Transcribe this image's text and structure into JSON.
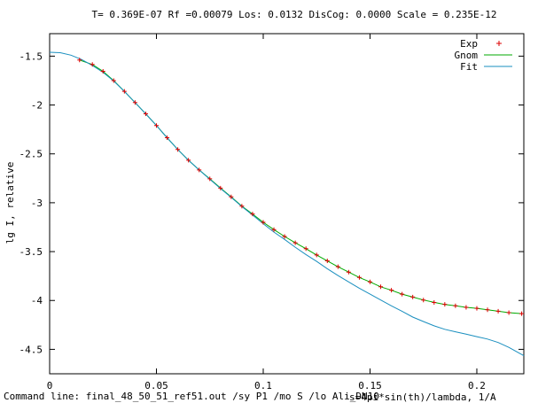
{
  "window": {
    "command_line_label": "Command line:",
    "command_line_text": "final_48_50_51_ref51.out /sy P1 /mo S /lo Ali_DN10"
  },
  "chart_data": {
    "type": "line",
    "title": "T= 0.369E-07 Rf =0.00079  Los: 0.0132 DisCog: 0.0000 Scale =  0.235E-12",
    "xlabel": "s=4pi*sin(th)/lambda, 1/A",
    "ylabel": "lg I, relative",
    "xlim": [
      0,
      0.222
    ],
    "ylim": [
      -4.75,
      -1.27
    ],
    "xticks": [
      0,
      0.05,
      0.1,
      0.15,
      0.2
    ],
    "xtick_labels": [
      "0",
      "0.05",
      "0.1",
      "0.15",
      "0.2"
    ],
    "yticks": [
      -1.5,
      -2,
      -2.5,
      -3,
      -3.5,
      -4,
      -4.5
    ],
    "ytick_labels": [
      "-1.5",
      "-2",
      "-2.5",
      "-3",
      "-3.5",
      "-4",
      "-4.5"
    ],
    "grid": false,
    "legend_position": "top-right",
    "colors": {
      "exp": "#dd0000",
      "gnom": "#00aa00",
      "fit": "#1a8fbf"
    },
    "series": [
      {
        "name": "Exp",
        "style": "points",
        "x": [
          0.014,
          0.02,
          0.025,
          0.03,
          0.035,
          0.04,
          0.045,
          0.05,
          0.055,
          0.06,
          0.065,
          0.07,
          0.075,
          0.08,
          0.085,
          0.09,
          0.095,
          0.1,
          0.105,
          0.11,
          0.115,
          0.12,
          0.125,
          0.13,
          0.135,
          0.14,
          0.145,
          0.15,
          0.155,
          0.16,
          0.165,
          0.17,
          0.175,
          0.18,
          0.185,
          0.19,
          0.195,
          0.2,
          0.205,
          0.21,
          0.215,
          0.221
        ],
        "y": [
          -1.54,
          -1.585,
          -1.655,
          -1.75,
          -1.86,
          -1.975,
          -2.09,
          -2.21,
          -2.335,
          -2.455,
          -2.565,
          -2.665,
          -2.755,
          -2.85,
          -2.94,
          -3.035,
          -3.115,
          -3.2,
          -3.275,
          -3.345,
          -3.41,
          -3.47,
          -3.535,
          -3.595,
          -3.655,
          -3.71,
          -3.765,
          -3.81,
          -3.86,
          -3.895,
          -3.935,
          -3.965,
          -3.995,
          -4.02,
          -4.04,
          -4.055,
          -4.07,
          -4.08,
          -4.095,
          -4.11,
          -4.125,
          -4.135
        ]
      },
      {
        "name": "Gnom",
        "style": "line",
        "x": [
          0.014,
          0.02,
          0.025,
          0.03,
          0.035,
          0.04,
          0.045,
          0.05,
          0.055,
          0.06,
          0.065,
          0.07,
          0.075,
          0.08,
          0.085,
          0.09,
          0.095,
          0.1,
          0.105,
          0.11,
          0.115,
          0.12,
          0.125,
          0.13,
          0.135,
          0.14,
          0.145,
          0.15,
          0.155,
          0.16,
          0.165,
          0.17,
          0.175,
          0.18,
          0.185,
          0.19,
          0.195,
          0.2,
          0.205,
          0.21,
          0.215,
          0.221
        ],
        "y": [
          -1.54,
          -1.585,
          -1.655,
          -1.75,
          -1.86,
          -1.975,
          -2.09,
          -2.21,
          -2.335,
          -2.455,
          -2.565,
          -2.665,
          -2.755,
          -2.85,
          -2.94,
          -3.035,
          -3.115,
          -3.2,
          -3.275,
          -3.345,
          -3.41,
          -3.47,
          -3.535,
          -3.595,
          -3.655,
          -3.71,
          -3.765,
          -3.81,
          -3.86,
          -3.895,
          -3.935,
          -3.965,
          -3.995,
          -4.02,
          -4.04,
          -4.055,
          -4.07,
          -4.08,
          -4.095,
          -4.11,
          -4.125,
          -4.135
        ]
      },
      {
        "name": "Fit",
        "style": "line",
        "x": [
          0,
          0.005,
          0.01,
          0.015,
          0.02,
          0.025,
          0.03,
          0.035,
          0.04,
          0.045,
          0.05,
          0.055,
          0.06,
          0.065,
          0.07,
          0.075,
          0.08,
          0.085,
          0.09,
          0.095,
          0.1,
          0.105,
          0.11,
          0.115,
          0.12,
          0.125,
          0.13,
          0.135,
          0.14,
          0.145,
          0.15,
          0.155,
          0.16,
          0.165,
          0.17,
          0.175,
          0.18,
          0.185,
          0.19,
          0.195,
          0.2,
          0.205,
          0.21,
          0.215,
          0.222
        ],
        "y": [
          -1.46,
          -1.465,
          -1.49,
          -1.535,
          -1.595,
          -1.665,
          -1.755,
          -1.86,
          -1.975,
          -2.09,
          -2.21,
          -2.335,
          -2.455,
          -2.565,
          -2.665,
          -2.76,
          -2.855,
          -2.945,
          -3.04,
          -3.125,
          -3.215,
          -3.3,
          -3.375,
          -3.455,
          -3.53,
          -3.6,
          -3.675,
          -3.745,
          -3.81,
          -3.875,
          -3.935,
          -3.995,
          -4.055,
          -4.11,
          -4.17,
          -4.215,
          -4.26,
          -4.295,
          -4.32,
          -4.345,
          -4.37,
          -4.395,
          -4.43,
          -4.48,
          -4.565
        ]
      }
    ]
  }
}
